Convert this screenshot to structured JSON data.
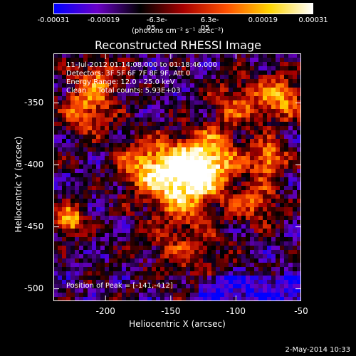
{
  "chart_data": {
    "type": "heatmap",
    "title": "Reconstructed RHESSI Image",
    "xlabel": "Heliocentric X (arcsec)",
    "ylabel": "Heliocentric Y (arcsec)",
    "xlim": [
      -240,
      -50
    ],
    "ylim": [
      -510,
      -310
    ],
    "x_ticks": [
      "-200",
      "-150",
      "-100",
      "-50"
    ],
    "x_tick_values": [
      -200,
      -150,
      -100,
      -50
    ],
    "y_ticks": [
      "-350",
      "-400",
      "-450",
      "-500"
    ],
    "y_tick_values": [
      -350,
      -400,
      -450,
      -500
    ],
    "colorbar": {
      "ticks": [
        "-0.00031",
        "-0.00019",
        "-6.3e-05",
        "6.3e-05",
        "0.00019",
        "0.00031"
      ],
      "tick_values": [
        -0.00031,
        -0.00019,
        -6.3e-05,
        6.3e-05,
        0.00019,
        0.00031
      ],
      "label": "(photons cm⁻² s⁻¹ asec⁻²)",
      "colors": [
        "#0000ff",
        "#6a00c8",
        "#000000",
        "#a80000",
        "#ff5000",
        "#ffd400",
        "#ffffff"
      ]
    },
    "annotations": {
      "time": "11-Jul-2012 01:14:08.000 to 01:18:46.000",
      "detectors": "Detectors: 3F 5F 6F 7F 8F 9F, Att 0",
      "energy": "Energy Range: 12.0 - 25.0 keV",
      "clean": "Clean     Total counts: 5.93E+03",
      "peak": "Position of Peak = [-141,-412]"
    },
    "peak": {
      "x": -141,
      "y": -412
    }
  },
  "footer": {
    "timestamp": "2-May-2014 10:33"
  }
}
